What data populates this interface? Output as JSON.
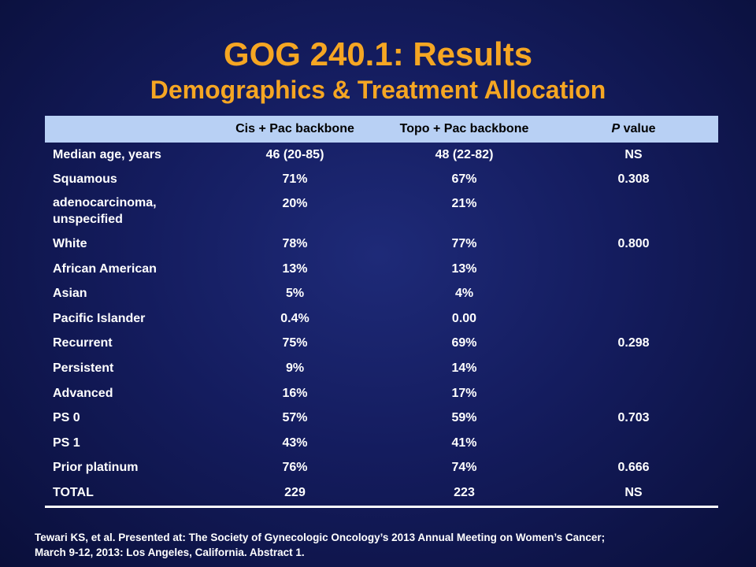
{
  "title": "GOG 240.1: Results",
  "subtitle": "Demographics & Treatment Allocation",
  "table": {
    "headers": {
      "col0": "",
      "col1": "Cis + Pac backbone",
      "col2": "Topo + Pac backbone",
      "col3_italic": "P",
      "col3_rest": " value"
    },
    "rows": [
      {
        "label": "Median age, years",
        "cis": "46 (20-85)",
        "topo": "48 (22-82)",
        "p": "NS"
      },
      {
        "label": "Squamous",
        "cis": "71%",
        "topo": "67%",
        "p": "0.308"
      },
      {
        "label": "adenocarcinoma, unspecified",
        "cis": "20%",
        "topo": "21%",
        "p": ""
      },
      {
        "label": "White",
        "cis": "78%",
        "topo": "77%",
        "p": "0.800"
      },
      {
        "label": "African American",
        "cis": "13%",
        "topo": "13%",
        "p": ""
      },
      {
        "label": "Asian",
        "cis": "5%",
        "topo": "4%",
        "p": ""
      },
      {
        "label": "Pacific Islander",
        "cis": "0.4%",
        "topo": "0.00",
        "p": ""
      },
      {
        "label": "Recurrent",
        "cis": "75%",
        "topo": "69%",
        "p": "0.298"
      },
      {
        "label": "Persistent",
        "cis": "9%",
        "topo": "14%",
        "p": ""
      },
      {
        "label": "Advanced",
        "cis": "16%",
        "topo": "17%",
        "p": ""
      },
      {
        "label": "PS 0",
        "cis": "57%",
        "topo": "59%",
        "p": "0.703"
      },
      {
        "label": "PS 1",
        "cis": "43%",
        "topo": "41%",
        "p": ""
      },
      {
        "label": "Prior platinum",
        "cis": "76%",
        "topo": "74%",
        "p": "0.666"
      },
      {
        "label": "TOTAL",
        "cis": "229",
        "topo": "223",
        "p": "NS"
      }
    ]
  },
  "citation": {
    "line1": "Tewari KS, et al. Presented at: The Society of Gynecologic Oncology’s 2013 Annual Meeting on Women’s Cancer;",
    "line2": "March 9-12, 2013: Los Angeles, California. Abstract 1."
  },
  "colors": {
    "title": "#f5a623",
    "header_bg": "#b8d0f4",
    "background": "#141c5e"
  }
}
